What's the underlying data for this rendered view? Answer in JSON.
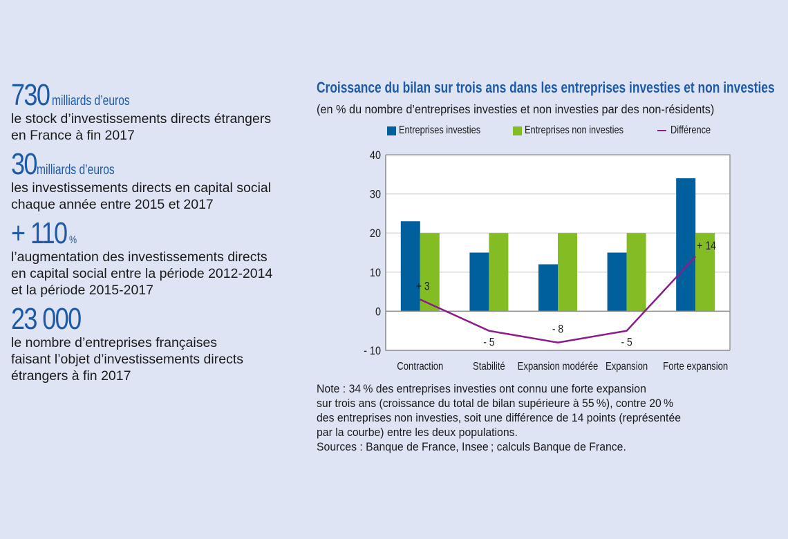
{
  "stats": [
    {
      "value": "730",
      "unit": "milliards d’euros",
      "desc": [
        "le stock d’investissements directs étrangers",
        "en France à fin 2017"
      ]
    },
    {
      "value": "30",
      "unit": "milliards d’euros",
      "desc": [
        "les investissements directs en capital social",
        "chaque année entre 2015 et 2017"
      ]
    },
    {
      "value": "+ 110",
      "unit": "%",
      "desc": [
        "l’augmentation des investissements directs",
        "en capital social entre la période 2012-2014",
        "et la période 2015-2017"
      ]
    },
    {
      "value": "23 000",
      "unit": "",
      "desc": [
        "le nombre d’entreprises françaises",
        "faisant l’objet d’investissements directs",
        "étrangers à fin 2017"
      ]
    }
  ],
  "colors": {
    "investies": "#00609e",
    "non_investies": "#84bc23",
    "difference": "#8b1a8b",
    "accent": "#1f5aa6",
    "background": "#dfe4f4"
  },
  "chart_data": {
    "type": "bar",
    "title": "Croissance du bilan sur trois ans dans les entreprises investies et non investies",
    "subtitle": "(en % du nombre d’entreprises investies et non investies par des non-résidents)",
    "categories": [
      "Contraction",
      "Stabilité",
      "Expansion modérée",
      "Expansion",
      "Forte expansion"
    ],
    "series": [
      {
        "name": "Entreprises investies",
        "type": "bar",
        "values": [
          23,
          15,
          12,
          15,
          34
        ]
      },
      {
        "name": "Entreprises non investies",
        "type": "bar",
        "values": [
          20,
          20,
          20,
          20,
          20
        ]
      },
      {
        "name": "Différence",
        "type": "line",
        "values": [
          3,
          -5,
          -8,
          -5,
          14
        ],
        "labels": [
          "+ 3",
          "- 5",
          "- 8",
          "- 5",
          "+ 14"
        ]
      }
    ],
    "ylim": [
      -10,
      40
    ],
    "yticks": [
      40,
      30,
      20,
      10,
      0,
      -10
    ],
    "ytick_labels": [
      "40",
      "30",
      "20",
      "10",
      "0",
      "- 10"
    ],
    "xlabel": "",
    "ylabel": "",
    "grid": true,
    "legend_position": "top"
  },
  "note": [
    "Note : 34 % des entreprises investies ont connu une forte expansion",
    "sur trois ans (croissance du total de bilan supérieure à 55 %), contre 20 %",
    "des entreprises non investies, soit une différence de 14 points (représentée",
    "par la courbe) entre les deux populations.",
    "Sources : Banque de France, Insee ; calculs Banque de France."
  ]
}
